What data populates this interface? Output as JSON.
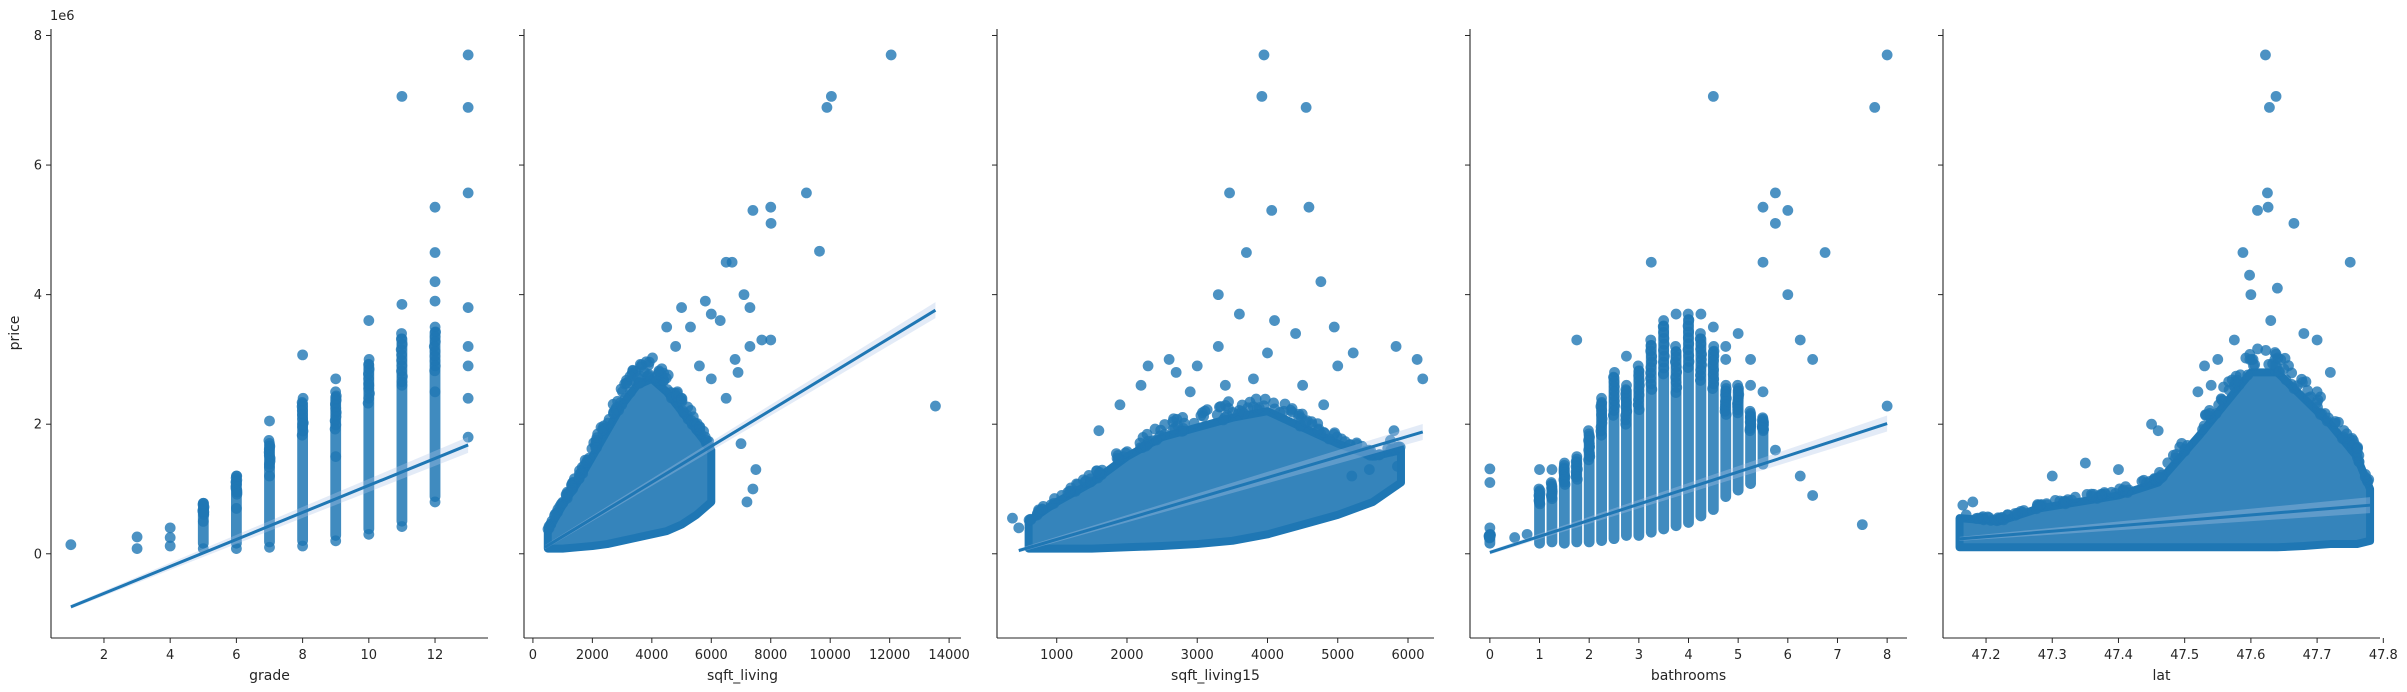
{
  "figure": {
    "shared_ylabel": "price",
    "y_offset_label": "1e6",
    "y_ticks": [
      0,
      2,
      4,
      6,
      8
    ],
    "ylim": [
      -1.3,
      8.1
    ],
    "colors": {
      "points": "#1f77b4",
      "line": "#1f77b4",
      "ci": "#aec7e8",
      "axis": "#262626"
    }
  },
  "chart_data": [
    {
      "type": "scatter",
      "xlabel": "grade",
      "ylabel": "price",
      "xlim": [
        0.4,
        13.6
      ],
      "x_ticks": [
        2,
        4,
        6,
        8,
        10,
        12
      ],
      "regression": {
        "x": [
          1,
          13
        ],
        "y": [
          -0.82,
          1.68
        ]
      },
      "points": [
        [
          1,
          0.14
        ],
        [
          3,
          0.26
        ],
        [
          3,
          0.08
        ],
        [
          4,
          0.12
        ],
        [
          4,
          0.4
        ],
        [
          4,
          0.25
        ],
        [
          5,
          0.08
        ],
        [
          5,
          0.78
        ],
        [
          5,
          0.5
        ],
        [
          6,
          0.08
        ],
        [
          6,
          1.2
        ],
        [
          6,
          0.7
        ],
        [
          7,
          0.1
        ],
        [
          7,
          2.05
        ],
        [
          7,
          1.2
        ],
        [
          8,
          0.12
        ],
        [
          8,
          3.07
        ],
        [
          8,
          2.0
        ],
        [
          9,
          0.2
        ],
        [
          9,
          2.7
        ],
        [
          9,
          1.5
        ],
        [
          10,
          0.3
        ],
        [
          10,
          3.6
        ],
        [
          10,
          2.6
        ],
        [
          11,
          0.42
        ],
        [
          11,
          7.06
        ],
        [
          11,
          3.85
        ],
        [
          11,
          2.6
        ],
        [
          12,
          0.8
        ],
        [
          12,
          5.35
        ],
        [
          12,
          4.65
        ],
        [
          12,
          4.2
        ],
        [
          12,
          3.9
        ],
        [
          12,
          2.5
        ],
        [
          13,
          1.8
        ],
        [
          13,
          7.7
        ],
        [
          13,
          6.89
        ],
        [
          13,
          5.57
        ],
        [
          13,
          3.8
        ],
        [
          13,
          3.2
        ],
        [
          13,
          2.9
        ],
        [
          13,
          2.4
        ]
      ],
      "strips": [
        [
          5,
          0.08,
          0.78
        ],
        [
          6,
          0.08,
          1.2
        ],
        [
          7,
          0.1,
          1.75
        ],
        [
          8,
          0.12,
          2.4
        ],
        [
          9,
          0.2,
          2.5
        ],
        [
          10,
          0.3,
          3.0
        ],
        [
          11,
          0.42,
          3.4
        ],
        [
          12,
          0.8,
          3.5
        ]
      ]
    },
    {
      "type": "scatter",
      "xlabel": "sqft_living",
      "ylabel": "price",
      "xlim": [
        -300,
        14400
      ],
      "x_ticks": [
        0,
        2000,
        4000,
        6000,
        8000,
        10000,
        12000,
        14000
      ],
      "regression": {
        "x": [
          400,
          13540
        ],
        "y": [
          0.1,
          3.76
        ]
      },
      "points": [
        [
          12050,
          7.7
        ],
        [
          10040,
          7.06
        ],
        [
          9890,
          6.89
        ],
        [
          9200,
          5.57
        ],
        [
          7400,
          5.3
        ],
        [
          8000,
          5.35
        ],
        [
          8010,
          5.1
        ],
        [
          9640,
          4.67
        ],
        [
          6500,
          4.5
        ],
        [
          6700,
          4.5
        ],
        [
          7300,
          3.8
        ],
        [
          7100,
          4.0
        ],
        [
          6300,
          3.6
        ],
        [
          6000,
          3.7
        ],
        [
          5800,
          3.9
        ],
        [
          5000,
          3.8
        ],
        [
          5300,
          3.5
        ],
        [
          8000,
          3.3
        ],
        [
          7700,
          3.3
        ],
        [
          7300,
          3.2
        ],
        [
          13540,
          2.28
        ],
        [
          7000,
          1.7
        ],
        [
          7500,
          1.3
        ],
        [
          7400,
          1.0
        ],
        [
          7200,
          0.8
        ],
        [
          6500,
          2.4
        ],
        [
          6800,
          3.0
        ],
        [
          6900,
          2.8
        ],
        [
          4500,
          3.5
        ],
        [
          4800,
          3.2
        ],
        [
          5600,
          2.9
        ],
        [
          6000,
          2.7
        ]
      ],
      "cloud": [
        [
          500,
          0.08,
          0.35
        ],
        [
          1000,
          0.08,
          0.75
        ],
        [
          1500,
          0.1,
          1.1
        ],
        [
          2000,
          0.12,
          1.5
        ],
        [
          2500,
          0.15,
          1.9
        ],
        [
          3000,
          0.2,
          2.3
        ],
        [
          3500,
          0.25,
          2.6
        ],
        [
          4000,
          0.3,
          2.7
        ],
        [
          4500,
          0.35,
          2.5
        ],
        [
          5000,
          0.45,
          2.2
        ],
        [
          5500,
          0.6,
          1.9
        ],
        [
          6000,
          0.8,
          1.6
        ]
      ]
    },
    {
      "type": "scatter",
      "xlabel": "sqft_living15",
      "ylabel": "price",
      "xlim": [
        150,
        6370
      ],
      "x_ticks": [
        1000,
        2000,
        3000,
        4000,
        5000,
        6000
      ],
      "regression": {
        "x": [
          460,
          6210
        ],
        "y": [
          0.05,
          1.88
        ]
      },
      "points": [
        [
          3950,
          7.7
        ],
        [
          3920,
          7.06
        ],
        [
          4550,
          6.89
        ],
        [
          3460,
          5.57
        ],
        [
          4060,
          5.3
        ],
        [
          4590,
          5.35
        ],
        [
          3700,
          4.65
        ],
        [
          4760,
          4.2
        ],
        [
          3300,
          4.0
        ],
        [
          3600,
          3.7
        ],
        [
          3300,
          3.2
        ],
        [
          4100,
          3.6
        ],
        [
          4400,
          3.4
        ],
        [
          4000,
          3.1
        ],
        [
          4950,
          3.5
        ],
        [
          5000,
          2.9
        ],
        [
          5220,
          3.1
        ],
        [
          5830,
          3.2
        ],
        [
          6130,
          3.0
        ],
        [
          6210,
          2.7
        ],
        [
          5800,
          1.9
        ],
        [
          5750,
          1.75
        ],
        [
          5850,
          1.35
        ],
        [
          5450,
          1.3
        ],
        [
          5200,
          1.2
        ],
        [
          370,
          0.55
        ],
        [
          460,
          0.4
        ],
        [
          2600,
          3.0
        ],
        [
          2300,
          2.9
        ],
        [
          3000,
          2.9
        ],
        [
          2700,
          2.8
        ],
        [
          2200,
          2.6
        ],
        [
          2900,
          2.5
        ],
        [
          3400,
          2.6
        ],
        [
          3800,
          2.7
        ],
        [
          1900,
          2.3
        ],
        [
          1600,
          1.9
        ],
        [
          4800,
          2.3
        ],
        [
          4500,
          2.6
        ]
      ],
      "cloud": [
        [
          600,
          0.08,
          0.5
        ],
        [
          1000,
          0.08,
          0.8
        ],
        [
          1500,
          0.08,
          1.1
        ],
        [
          2000,
          0.1,
          1.5
        ],
        [
          2500,
          0.12,
          1.8
        ],
        [
          3000,
          0.15,
          1.95
        ],
        [
          3500,
          0.2,
          2.1
        ],
        [
          4000,
          0.3,
          2.2
        ],
        [
          4500,
          0.45,
          1.95
        ],
        [
          5000,
          0.6,
          1.7
        ],
        [
          5500,
          0.8,
          1.5
        ],
        [
          5900,
          1.1,
          1.6
        ]
      ]
    },
    {
      "type": "scatter",
      "xlabel": "bathrooms",
      "ylabel": "price",
      "xlim": [
        -0.4,
        8.4
      ],
      "x_ticks": [
        0,
        1,
        2,
        3,
        4,
        5,
        6,
        7,
        8
      ],
      "regression": {
        "x": [
          0,
          8
        ],
        "y": [
          0.02,
          2.01
        ]
      },
      "points": [
        [
          8,
          7.7
        ],
        [
          7.75,
          6.89
        ],
        [
          4.5,
          7.06
        ],
        [
          5.75,
          5.57
        ],
        [
          5.5,
          5.35
        ],
        [
          6,
          5.3
        ],
        [
          5.75,
          5.1
        ],
        [
          6.75,
          4.65
        ],
        [
          3.25,
          4.5
        ],
        [
          5.5,
          4.5
        ],
        [
          6,
          4.0
        ],
        [
          6.25,
          3.3
        ],
        [
          6.5,
          3.0
        ],
        [
          8,
          2.28
        ],
        [
          7.5,
          0.45
        ],
        [
          6.5,
          0.9
        ],
        [
          6.25,
          1.2
        ],
        [
          5.75,
          1.6
        ],
        [
          1.75,
          3.3
        ],
        [
          2.75,
          3.05
        ],
        [
          3.75,
          3.7
        ],
        [
          4.25,
          3.7
        ],
        [
          4.5,
          3.5
        ],
        [
          4.75,
          3.2
        ],
        [
          5.25,
          3.0
        ],
        [
          0,
          1.31
        ],
        [
          0,
          1.1
        ],
        [
          0,
          0.4
        ],
        [
          0.75,
          0.3
        ],
        [
          0.5,
          0.25
        ],
        [
          1,
          1.3
        ],
        [
          1.25,
          1.3
        ],
        [
          5,
          3.4
        ],
        [
          5.25,
          2.6
        ],
        [
          5.5,
          2.5
        ],
        [
          4.75,
          3.0
        ]
      ],
      "strips": [
        [
          0,
          0.08,
          0.3
        ],
        [
          1,
          0.08,
          1.0
        ],
        [
          1.25,
          0.1,
          1.1
        ],
        [
          1.5,
          0.08,
          1.4
        ],
        [
          1.75,
          0.1,
          1.5
        ],
        [
          2,
          0.1,
          1.9
        ],
        [
          2.25,
          0.12,
          2.4
        ],
        [
          2.5,
          0.15,
          2.8
        ],
        [
          2.75,
          0.2,
          2.6
        ],
        [
          3,
          0.2,
          2.9
        ],
        [
          3.25,
          0.25,
          3.3
        ],
        [
          3.5,
          0.3,
          3.6
        ],
        [
          3.75,
          0.35,
          3.2
        ],
        [
          4,
          0.4,
          3.7
        ],
        [
          4.25,
          0.5,
          3.4
        ],
        [
          4.5,
          0.6,
          3.2
        ],
        [
          4.75,
          0.8,
          2.6
        ],
        [
          5,
          0.9,
          2.6
        ],
        [
          5.25,
          1.0,
          2.2
        ],
        [
          5.5,
          1.3,
          2.1
        ]
      ]
    },
    {
      "type": "scatter",
      "xlabel": "lat",
      "ylabel": "price",
      "xlim": [
        47.135,
        47.795
      ],
      "x_ticks": [
        47.2,
        47.3,
        47.4,
        47.5,
        47.6,
        47.7,
        47.8
      ],
      "x_tick_labels": [
        "47.2",
        "47.3",
        "47.4",
        "47.5",
        "47.6",
        "47.7",
        "47.8"
      ],
      "regression": {
        "x": [
          47.16,
          47.78
        ],
        "y": [
          0.23,
          0.75
        ]
      },
      "points": [
        [
          47.622,
          7.7
        ],
        [
          47.628,
          6.89
        ],
        [
          47.638,
          7.06
        ],
        [
          47.625,
          5.57
        ],
        [
          47.61,
          5.3
        ],
        [
          47.626,
          5.35
        ],
        [
          47.665,
          5.1
        ],
        [
          47.588,
          4.65
        ],
        [
          47.598,
          4.3
        ],
        [
          47.75,
          4.5
        ],
        [
          47.55,
          3.0
        ],
        [
          47.575,
          3.3
        ],
        [
          47.63,
          3.6
        ],
        [
          47.7,
          3.3
        ],
        [
          47.72,
          2.8
        ],
        [
          47.68,
          3.4
        ],
        [
          47.52,
          2.5
        ],
        [
          47.46,
          1.9
        ],
        [
          47.45,
          2.0
        ],
        [
          47.4,
          1.3
        ],
        [
          47.3,
          1.2
        ],
        [
          47.35,
          1.4
        ],
        [
          47.6,
          4.0
        ],
        [
          47.64,
          4.1
        ],
        [
          47.7,
          2.5
        ],
        [
          47.165,
          0.75
        ],
        [
          47.18,
          0.8
        ],
        [
          47.17,
          0.6
        ],
        [
          47.53,
          2.9
        ],
        [
          47.54,
          2.6
        ]
      ],
      "cloud": [
        [
          47.16,
          0.1,
          0.55
        ],
        [
          47.22,
          0.1,
          0.5
        ],
        [
          47.28,
          0.1,
          0.7
        ],
        [
          47.34,
          0.1,
          0.8
        ],
        [
          47.4,
          0.1,
          0.9
        ],
        [
          47.46,
          0.1,
          1.1
        ],
        [
          47.52,
          0.1,
          1.8
        ],
        [
          47.56,
          0.1,
          2.3
        ],
        [
          47.6,
          0.1,
          2.8
        ],
        [
          47.64,
          0.1,
          2.8
        ],
        [
          47.68,
          0.12,
          2.4
        ],
        [
          47.72,
          0.15,
          2.0
        ],
        [
          47.76,
          0.15,
          1.5
        ],
        [
          47.78,
          0.2,
          1.0
        ]
      ]
    }
  ]
}
